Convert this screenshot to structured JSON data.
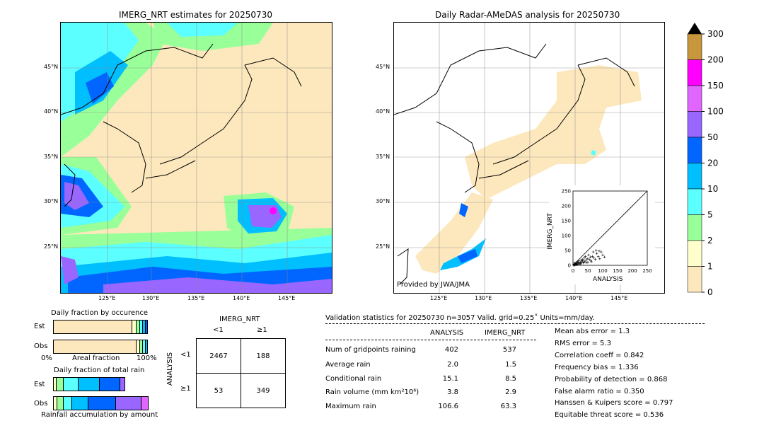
{
  "left_map": {
    "title": "IMERG_NRT estimates for 20250730",
    "lat_labels": [
      "45°N",
      "40°N",
      "35°N",
      "30°N",
      "25°N"
    ],
    "lon_labels": [
      "125°E",
      "130°E",
      "135°E",
      "140°E",
      "145°E"
    ]
  },
  "right_map": {
    "title": "Daily Radar-AMeDAS analysis for 20250730",
    "lat_labels": [
      "45°N",
      "40°N",
      "35°N",
      "30°N",
      "25°N"
    ],
    "lon_labels": [
      "125°E",
      "130°E",
      "135°E",
      "140°E",
      "145°E"
    ],
    "credit": "Provided by JWA/JMA"
  },
  "colorbar": {
    "labels": [
      "300",
      "200",
      "150",
      "100",
      "50",
      "20",
      "10",
      "5",
      "2",
      "1",
      "0"
    ],
    "colors": [
      "#c8963c",
      "#ff00ff",
      "#e066ff",
      "#9966ff",
      "#0066ff",
      "#00bfff",
      "#5cffff",
      "#99ff99",
      "#ffffcc",
      "#fde8bd"
    ]
  },
  "occurrence": {
    "title": "Daily fraction by occurence",
    "rows": [
      "Est",
      "Obs"
    ],
    "xlabel": "Areal fraction",
    "xmin": "0%",
    "xmax": "100%"
  },
  "total_rain": {
    "title": "Daily fraction of total rain",
    "rows": [
      "Est",
      "Obs"
    ],
    "xlabel": "Rainfall accumulation by amount"
  },
  "contingency": {
    "title": "IMERG_NRT",
    "col_lt": "<1",
    "col_ge": "≥1",
    "ylabel": "ANALYSIS",
    "row_lt": "<1",
    "row_ge": "≥1",
    "a": "2467",
    "b": "188",
    "c": "53",
    "d": "349"
  },
  "validation": {
    "header": "Validation statistics for 20250730  n=3057 Valid. grid=0.25˚ Units=mm/day.",
    "col_analysis": "ANALYSIS",
    "col_imerg": "IMERG_NRT",
    "rows": [
      {
        "label": "Num of gridpoints raining",
        "analysis": "402",
        "imerg": "537"
      },
      {
        "label": "Average rain",
        "analysis": "2.0",
        "imerg": "1.5"
      },
      {
        "label": "Conditional rain",
        "analysis": "15.1",
        "imerg": "8.5"
      },
      {
        "label": "Rain volume (mm km²10⁶)",
        "analysis": "3.8",
        "imerg": "2.9"
      },
      {
        "label": "Maximum rain",
        "analysis": "106.6",
        "imerg": "63.3"
      }
    ],
    "scores": [
      "Mean abs error =    1.3",
      "RMS error =    5.3",
      "Correlation coeff =  0.842",
      "Frequency bias =  1.336",
      "Probability of detection =  0.868",
      "False alarm ratio =  0.350",
      "Hanssen & Kuipers score =  0.797",
      "Equitable threat score =  0.536"
    ]
  },
  "chart_data": {
    "type": "scatter",
    "xlabel": "ANALYSIS",
    "ylabel": "IMERG_NRT",
    "xlim": [
      0,
      250
    ],
    "ylim": [
      0,
      250
    ],
    "ticks": [
      "0",
      "50",
      "100",
      "150",
      "200",
      "250"
    ],
    "points": [
      [
        2,
        1
      ],
      [
        3,
        4
      ],
      [
        5,
        2
      ],
      [
        6,
        8
      ],
      [
        8,
        3
      ],
      [
        10,
        6
      ],
      [
        12,
        10
      ],
      [
        14,
        5
      ],
      [
        15,
        12
      ],
      [
        18,
        8
      ],
      [
        20,
        15
      ],
      [
        22,
        6
      ],
      [
        25,
        10
      ],
      [
        28,
        18
      ],
      [
        30,
        12
      ],
      [
        33,
        20
      ],
      [
        35,
        8
      ],
      [
        38,
        25
      ],
      [
        40,
        14
      ],
      [
        42,
        30
      ],
      [
        45,
        18
      ],
      [
        48,
        22
      ],
      [
        50,
        10
      ],
      [
        52,
        35
      ],
      [
        55,
        20
      ],
      [
        58,
        28
      ],
      [
        60,
        15
      ],
      [
        65,
        30
      ],
      [
        70,
        25
      ],
      [
        75,
        20
      ],
      [
        80,
        40
      ],
      [
        85,
        30
      ],
      [
        90,
        22
      ],
      [
        95,
        45
      ],
      [
        100,
        35
      ],
      [
        106,
        28
      ],
      [
        4,
        0
      ],
      [
        7,
        1
      ],
      [
        9,
        5
      ],
      [
        11,
        2
      ],
      [
        16,
        3
      ],
      [
        19,
        11
      ],
      [
        24,
        4
      ],
      [
        27,
        7
      ],
      [
        32,
        16
      ],
      [
        36,
        11
      ],
      [
        44,
        9
      ],
      [
        62,
        12
      ],
      [
        68,
        45
      ],
      [
        78,
        50
      ],
      [
        88,
        48
      ]
    ]
  }
}
